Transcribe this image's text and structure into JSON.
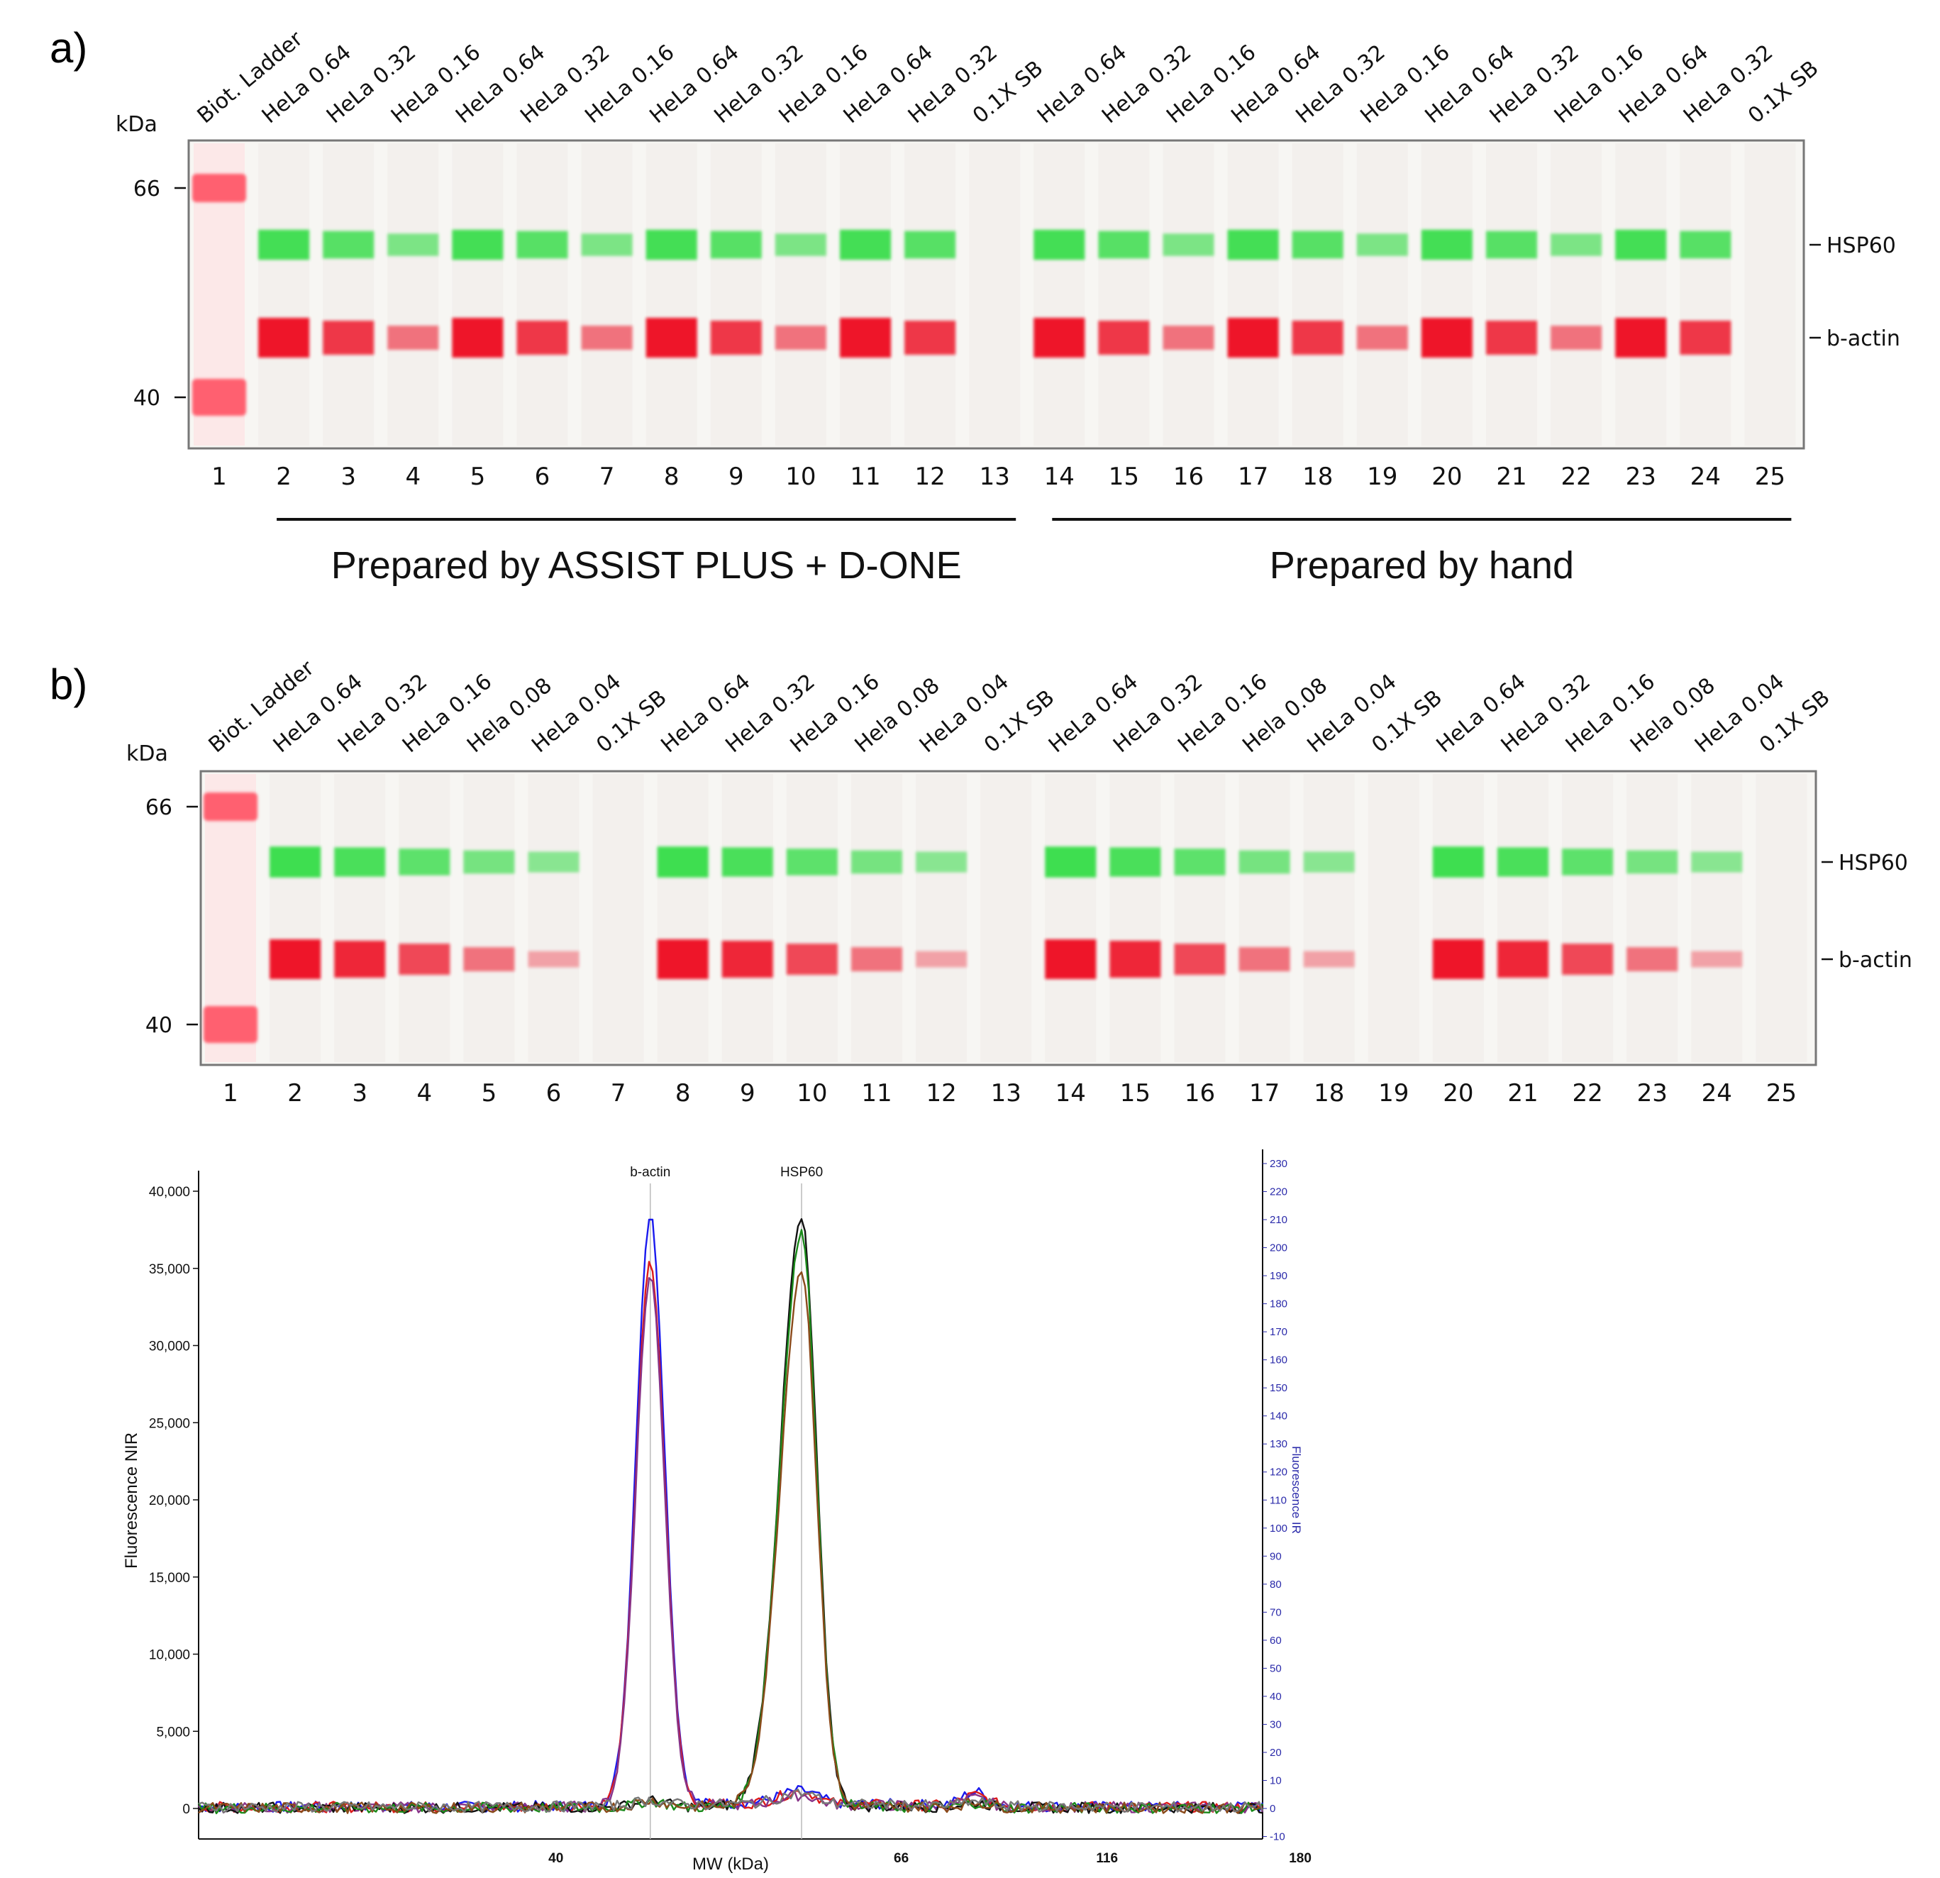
{
  "panel_a": {
    "letter": "a)",
    "kda_label": "kDa",
    "markers": [
      {
        "label": "66",
        "value": 66
      },
      {
        "label": "40",
        "value": 40
      }
    ],
    "band_labels": [
      "HSP60",
      "b-actin"
    ],
    "lanes": [
      {
        "num": "1",
        "label": "Biot. Ladder",
        "type": "ladder"
      },
      {
        "num": "2",
        "label": "HeLa 0.64",
        "hsp": 0.85,
        "act": 0.95
      },
      {
        "num": "3",
        "label": "HeLa 0.32",
        "hsp": 0.7,
        "act": 0.75
      },
      {
        "num": "4",
        "label": "HeLa 0.16",
        "hsp": 0.4,
        "act": 0.4
      },
      {
        "num": "5",
        "label": "HeLa 0.64",
        "hsp": 0.85,
        "act": 0.95
      },
      {
        "num": "6",
        "label": "HeLa 0.32",
        "hsp": 0.7,
        "act": 0.75
      },
      {
        "num": "7",
        "label": "HeLa 0.16",
        "hsp": 0.4,
        "act": 0.4
      },
      {
        "num": "8",
        "label": "HeLa 0.64",
        "hsp": 0.85,
        "act": 0.95
      },
      {
        "num": "9",
        "label": "HeLa 0.32",
        "hsp": 0.7,
        "act": 0.75
      },
      {
        "num": "10",
        "label": "HeLa 0.16",
        "hsp": 0.4,
        "act": 0.4
      },
      {
        "num": "11",
        "label": "HeLa 0.64",
        "hsp": 0.85,
        "act": 0.95
      },
      {
        "num": "12",
        "label": "HeLa 0.32",
        "hsp": 0.7,
        "act": 0.75
      },
      {
        "num": "13",
        "label": "0.1X SB",
        "hsp": 0,
        "act": 0
      },
      {
        "num": "14",
        "label": "HeLa 0.64",
        "hsp": 0.85,
        "act": 0.95
      },
      {
        "num": "15",
        "label": "HeLa 0.32",
        "hsp": 0.7,
        "act": 0.75
      },
      {
        "num": "16",
        "label": "HeLa 0.16",
        "hsp": 0.4,
        "act": 0.4
      },
      {
        "num": "17",
        "label": "HeLa 0.64",
        "hsp": 0.85,
        "act": 0.95
      },
      {
        "num": "18",
        "label": "HeLa 0.32",
        "hsp": 0.7,
        "act": 0.75
      },
      {
        "num": "19",
        "label": "HeLa 0.16",
        "hsp": 0.4,
        "act": 0.4
      },
      {
        "num": "20",
        "label": "HeLa 0.64",
        "hsp": 0.85,
        "act": 0.95
      },
      {
        "num": "21",
        "label": "HeLa 0.32",
        "hsp": 0.7,
        "act": 0.75
      },
      {
        "num": "22",
        "label": "HeLa 0.16",
        "hsp": 0.4,
        "act": 0.4
      },
      {
        "num": "23",
        "label": "HeLa 0.64",
        "hsp": 0.85,
        "act": 0.95
      },
      {
        "num": "24",
        "label": "HeLa 0.32",
        "hsp": 0.7,
        "act": 0.75
      },
      {
        "num": "25",
        "label": "0.1X SB",
        "hsp": 0,
        "act": 0
      }
    ],
    "groups": [
      {
        "label": "Prepared by ASSIST PLUS + D-ONE",
        "from_lane": 2,
        "to_lane": 13
      },
      {
        "label": "Prepared by hand",
        "from_lane": 14,
        "to_lane": 25
      }
    ]
  },
  "panel_b": {
    "letter": "b)",
    "kda_label": "kDa",
    "markers": [
      {
        "label": "66",
        "value": 66
      },
      {
        "label": "40",
        "value": 40
      }
    ],
    "band_labels": [
      "HSP60",
      "b-actin"
    ],
    "lanes": [
      {
        "num": "1",
        "label": "Biot. Ladder",
        "type": "ladder"
      },
      {
        "num": "2",
        "label": "HeLa 0.64",
        "hsp": 0.9,
        "act": 0.95
      },
      {
        "num": "3",
        "label": "HeLa 0.32",
        "hsp": 0.8,
        "act": 0.85
      },
      {
        "num": "4",
        "label": "HeLa 0.16",
        "hsp": 0.65,
        "act": 0.65
      },
      {
        "num": "5",
        "label": "Hela 0.08",
        "hsp": 0.45,
        "act": 0.4
      },
      {
        "num": "6",
        "label": "HeLa 0.04",
        "hsp": 0.3,
        "act": 0.12
      },
      {
        "num": "7",
        "label": "0.1X SB",
        "hsp": 0,
        "act": 0
      },
      {
        "num": "8",
        "label": "HeLa 0.64",
        "hsp": 0.9,
        "act": 0.95
      },
      {
        "num": "9",
        "label": "HeLa 0.32",
        "hsp": 0.8,
        "act": 0.85
      },
      {
        "num": "10",
        "label": "HeLa 0.16",
        "hsp": 0.65,
        "act": 0.65
      },
      {
        "num": "11",
        "label": "Hela 0.08",
        "hsp": 0.45,
        "act": 0.4
      },
      {
        "num": "12",
        "label": "HeLa 0.04",
        "hsp": 0.3,
        "act": 0.12
      },
      {
        "num": "13",
        "label": "0.1X SB",
        "hsp": 0,
        "act": 0
      },
      {
        "num": "14",
        "label": "HeLa 0.64",
        "hsp": 0.9,
        "act": 0.95
      },
      {
        "num": "15",
        "label": "HeLa 0.32",
        "hsp": 0.8,
        "act": 0.85
      },
      {
        "num": "16",
        "label": "HeLa 0.16",
        "hsp": 0.65,
        "act": 0.65
      },
      {
        "num": "17",
        "label": "Hela 0.08",
        "hsp": 0.45,
        "act": 0.4
      },
      {
        "num": "18",
        "label": "HeLa 0.04",
        "hsp": 0.3,
        "act": 0.12
      },
      {
        "num": "19",
        "label": "0.1X SB",
        "hsp": 0,
        "act": 0
      },
      {
        "num": "20",
        "label": "HeLa 0.64",
        "hsp": 0.9,
        "act": 0.95
      },
      {
        "num": "21",
        "label": "HeLa 0.32",
        "hsp": 0.8,
        "act": 0.85
      },
      {
        "num": "22",
        "label": "HeLa 0.16",
        "hsp": 0.65,
        "act": 0.65
      },
      {
        "num": "23",
        "label": "Hela 0.08",
        "hsp": 0.45,
        "act": 0.4
      },
      {
        "num": "24",
        "label": "HeLa 0.04",
        "hsp": 0.3,
        "act": 0.12
      },
      {
        "num": "25",
        "label": "0.1X SB",
        "hsp": 0,
        "act": 0
      }
    ]
  },
  "colors": {
    "hsp60": "#33dd44",
    "bactin": "#ee1122",
    "ladder": "#ff6070",
    "blot_bg": "#f7f6f3",
    "trace_blue": "#1a1aee",
    "trace_red": "#dd1a1a",
    "trace_green": "#1a8a1a",
    "trace_black": "#111111",
    "trace_brown": "#8a4a1a",
    "trace_purple": "#883388",
    "trace_gray": "#777777"
  },
  "chart_data": {
    "type": "line",
    "xlabel": "MW (kDa)",
    "ylabel": "Fluorescence NIR",
    "y2label": "Fluorescence IR",
    "ylim": [
      -1500,
      42000
    ],
    "y2lim": [
      -10,
      230
    ],
    "x_ticks": [
      "40",
      "66",
      "116",
      "180"
    ],
    "y_ticks": [
      "0",
      "5,000",
      "10,000",
      "15,000",
      "20,000",
      "25,000",
      "30,000",
      "35,000",
      "40,000"
    ],
    "y2_ticks": [
      "-10",
      "0",
      "10",
      "20",
      "30",
      "40",
      "50",
      "60",
      "70",
      "80",
      "90",
      "100",
      "110",
      "120",
      "130",
      "140",
      "150",
      "160",
      "170",
      "180",
      "190",
      "200",
      "210",
      "220",
      "230"
    ],
    "grid": false,
    "annotations": [
      {
        "label": "b-actin",
        "x_pos": 0.4245
      },
      {
        "label": "HSP60",
        "x_pos": 0.5667
      }
    ],
    "x_tick_pos": [
      0.3358,
      0.6604,
      0.8538,
      1.0354
    ],
    "peak_positions": {
      "bactin": 0.4245,
      "hsp60": 0.5667,
      "minor": 0.73
    },
    "series": [
      {
        "color_key": "trace_blue",
        "bactin": 38200,
        "hsp60": 800,
        "minor": 900,
        "baseline": 350
      },
      {
        "color_key": "trace_red",
        "bactin": 35100,
        "hsp60": 800,
        "minor": 700,
        "baseline": 300
      },
      {
        "color_key": "trace_purple",
        "bactin": 34300,
        "hsp60": 600,
        "minor": 500,
        "baseline": 250
      },
      {
        "color_key": "trace_black",
        "bactin": 400,
        "hsp60": 38000,
        "minor": 300,
        "baseline": 150
      },
      {
        "color_key": "trace_green",
        "bactin": 400,
        "hsp60": 37200,
        "minor": 300,
        "baseline": 100
      },
      {
        "color_key": "trace_brown",
        "bactin": 400,
        "hsp60": 34800,
        "minor": 300,
        "baseline": 150
      },
      {
        "color_key": "trace_gray",
        "bactin": 300,
        "hsp60": 700,
        "minor": 300,
        "baseline": 300
      }
    ]
  }
}
